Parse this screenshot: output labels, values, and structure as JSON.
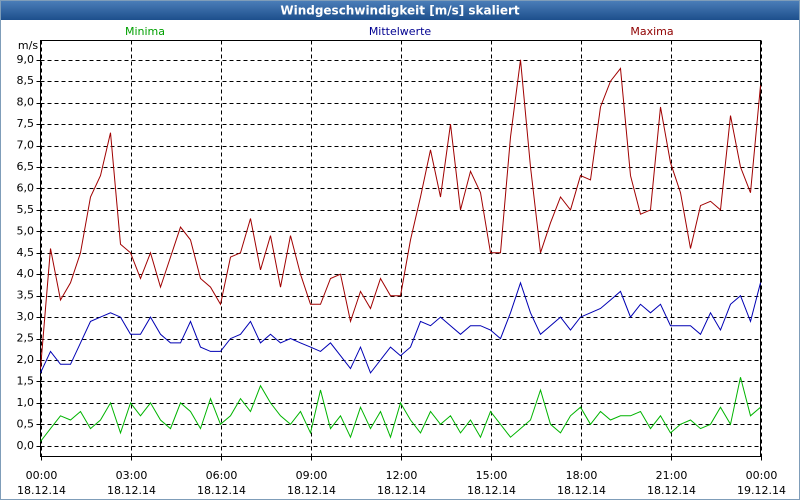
{
  "chart_data": {
    "type": "line",
    "title": "Windgeschwindigkeit [m/s] skaliert",
    "y_unit": "m/s",
    "x": [
      0,
      20,
      40,
      60,
      80,
      100,
      120,
      140,
      160,
      180,
      200,
      220,
      240,
      260,
      280,
      300,
      320,
      340,
      360,
      380,
      400,
      420,
      440,
      460,
      480,
      500,
      520,
      540,
      560,
      580,
      600,
      620,
      640,
      660,
      680,
      700,
      720,
      740,
      760,
      780,
      800,
      820,
      840,
      860,
      880,
      900,
      920,
      940,
      960,
      980,
      1000,
      1020,
      1040,
      1060,
      1080,
      1100,
      1120,
      1140,
      1160,
      1180,
      1200,
      1220,
      1240,
      1260,
      1280,
      1300,
      1320,
      1340,
      1360,
      1380,
      1400,
      1420,
      1440
    ],
    "series": [
      {
        "name": "Minima",
        "color": "#00b400",
        "label_color": "#00a000",
        "values": [
          0.1,
          0.4,
          0.7,
          0.6,
          0.8,
          0.4,
          0.6,
          1.0,
          0.3,
          1.0,
          0.7,
          1.0,
          0.6,
          0.4,
          1.0,
          0.8,
          0.4,
          1.1,
          0.5,
          0.7,
          1.1,
          0.8,
          1.4,
          1.0,
          0.7,
          0.5,
          0.8,
          0.3,
          1.3,
          0.4,
          0.7,
          0.2,
          0.9,
          0.4,
          0.8,
          0.2,
          1.0,
          0.6,
          0.3,
          0.8,
          0.5,
          0.7,
          0.3,
          0.6,
          0.2,
          0.8,
          0.5,
          0.2,
          0.4,
          0.6,
          1.3,
          0.5,
          0.3,
          0.7,
          0.9,
          0.5,
          0.8,
          0.6,
          0.7,
          0.7,
          0.8,
          0.4,
          0.7,
          0.3,
          0.5,
          0.6,
          0.4,
          0.5,
          0.9,
          0.5,
          1.6,
          0.7,
          0.9
        ]
      },
      {
        "name": "Mittelwerte",
        "color": "#0000b4",
        "label_color": "#000090",
        "values": [
          1.7,
          2.2,
          1.9,
          1.9,
          2.4,
          2.9,
          3.0,
          3.1,
          3.0,
          2.6,
          2.6,
          3.0,
          2.6,
          2.4,
          2.4,
          2.9,
          2.3,
          2.2,
          2.2,
          2.5,
          2.6,
          2.9,
          2.4,
          2.6,
          2.4,
          2.5,
          2.4,
          2.3,
          2.2,
          2.4,
          2.1,
          1.8,
          2.3,
          1.7,
          2.0,
          2.3,
          2.1,
          2.3,
          2.9,
          2.8,
          3.0,
          2.8,
          2.6,
          2.8,
          2.8,
          2.7,
          2.5,
          3.1,
          3.8,
          3.1,
          2.6,
          2.8,
          3.0,
          2.7,
          3.0,
          3.1,
          3.2,
          3.4,
          3.6,
          3.0,
          3.3,
          3.1,
          3.3,
          2.8,
          2.8,
          2.8,
          2.6,
          3.1,
          2.7,
          3.3,
          3.5,
          2.9,
          3.8
        ]
      },
      {
        "name": "Maxima",
        "color": "#a00000",
        "label_color": "#900000",
        "values": [
          1.8,
          4.6,
          3.4,
          3.8,
          4.5,
          5.8,
          6.3,
          7.3,
          4.7,
          4.5,
          3.9,
          4.5,
          3.7,
          4.4,
          5.1,
          4.8,
          3.9,
          3.7,
          3.3,
          4.4,
          4.5,
          5.3,
          4.1,
          4.9,
          3.7,
          4.9,
          4.0,
          3.3,
          3.3,
          3.9,
          4.0,
          2.9,
          3.6,
          3.2,
          3.9,
          3.5,
          3.5,
          4.8,
          5.8,
          6.9,
          5.8,
          7.5,
          5.5,
          6.4,
          5.9,
          4.5,
          4.5,
          7.2,
          9.0,
          6.5,
          4.5,
          5.2,
          5.8,
          5.5,
          6.3,
          6.2,
          7.9,
          8.5,
          8.8,
          6.3,
          5.4,
          5.5,
          7.9,
          6.6,
          5.9,
          4.6,
          5.6,
          5.7,
          5.5,
          7.7,
          6.5,
          5.9,
          8.4
        ]
      }
    ],
    "xlim": [
      0,
      1440
    ],
    "xticks": [
      {
        "value": 0,
        "label": "00:00",
        "date": "18.12.14"
      },
      {
        "value": 180,
        "label": "03:00",
        "date": "18.12.14"
      },
      {
        "value": 360,
        "label": "06:00",
        "date": "18.12.14"
      },
      {
        "value": 540,
        "label": "09:00",
        "date": "18.12.14"
      },
      {
        "value": 720,
        "label": "12:00",
        "date": "18.12.14"
      },
      {
        "value": 900,
        "label": "15:00",
        "date": "18.12.14"
      },
      {
        "value": 1080,
        "label": "18:00",
        "date": "18.12.14"
      },
      {
        "value": 1260,
        "label": "21:00",
        "date": "18.12.14"
      },
      {
        "value": 1440,
        "label": "00:00",
        "date": "19.12.14"
      }
    ],
    "ylim": [
      -0.25,
      9.45
    ],
    "yticks": [
      {
        "value": 0,
        "label": "0,0"
      },
      {
        "value": 0.5,
        "label": "0,5"
      },
      {
        "value": 1,
        "label": "1,0"
      },
      {
        "value": 1.5,
        "label": "1,5"
      },
      {
        "value": 2,
        "label": "2,0"
      },
      {
        "value": 2.5,
        "label": "2,5"
      },
      {
        "value": 3,
        "label": "3,0"
      },
      {
        "value": 3.5,
        "label": "3,5"
      },
      {
        "value": 4,
        "label": "4,0"
      },
      {
        "value": 4.5,
        "label": "4,5"
      },
      {
        "value": 5,
        "label": "5,0"
      },
      {
        "value": 5.5,
        "label": "5,5"
      },
      {
        "value": 6,
        "label": "6,0"
      },
      {
        "value": 6.5,
        "label": "6,5"
      },
      {
        "value": 7,
        "label": "7,0"
      },
      {
        "value": 7.5,
        "label": "7,5"
      },
      {
        "value": 8,
        "label": "8,0"
      },
      {
        "value": 8.5,
        "label": "8,5"
      },
      {
        "value": 9,
        "label": "9,0"
      }
    ],
    "grid": true
  }
}
